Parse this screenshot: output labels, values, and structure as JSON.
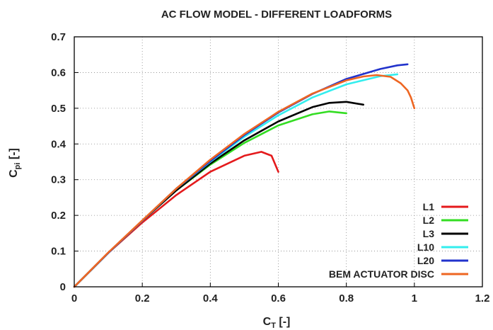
{
  "chart_data": {
    "type": "line",
    "title": "AC FLOW MODEL - DIFFERENT LOADFORMS",
    "xlabel": {
      "main": "C",
      "sub": "T",
      "suffix": " [-]"
    },
    "ylabel": {
      "main": "C",
      "sub": "pi",
      "suffix": " [-]"
    },
    "xlim": [
      0,
      1.2
    ],
    "ylim": [
      0,
      0.7
    ],
    "xticks": [
      "0",
      "0.2",
      "0.4",
      "0.6",
      "0.8",
      "1",
      "1.2"
    ],
    "yticks": [
      "0",
      "0.1",
      "0.2",
      "0.3",
      "0.4",
      "0.5",
      "0.6",
      "0.7"
    ],
    "grid": true,
    "grid_style": "dotted",
    "legend_position": "bottom-right",
    "series": [
      {
        "name": "L1",
        "color": "#e41a1c",
        "x": [
          0,
          0.1,
          0.2,
          0.3,
          0.4,
          0.5,
          0.55,
          0.58,
          0.6
        ],
        "y": [
          0,
          0.095,
          0.18,
          0.257,
          0.322,
          0.367,
          0.378,
          0.367,
          0.322
        ]
      },
      {
        "name": "L2",
        "color": "#33dd22",
        "x": [
          0,
          0.1,
          0.2,
          0.3,
          0.4,
          0.5,
          0.6,
          0.7,
          0.75,
          0.8
        ],
        "y": [
          0,
          0.095,
          0.185,
          0.27,
          0.342,
          0.403,
          0.452,
          0.483,
          0.491,
          0.486
        ]
      },
      {
        "name": "L3",
        "color": "#000000",
        "x": [
          0,
          0.1,
          0.2,
          0.3,
          0.4,
          0.5,
          0.6,
          0.7,
          0.75,
          0.8,
          0.85
        ],
        "y": [
          0,
          0.095,
          0.185,
          0.27,
          0.345,
          0.41,
          0.463,
          0.503,
          0.515,
          0.518,
          0.51
        ]
      },
      {
        "name": "L10",
        "color": "#33eeee",
        "x": [
          0,
          0.1,
          0.2,
          0.3,
          0.4,
          0.5,
          0.6,
          0.7,
          0.8,
          0.9,
          0.95
        ],
        "y": [
          0,
          0.095,
          0.185,
          0.275,
          0.35,
          0.42,
          0.48,
          0.53,
          0.567,
          0.59,
          0.595
        ]
      },
      {
        "name": "L20",
        "color": "#2233cc",
        "x": [
          0,
          0.1,
          0.2,
          0.3,
          0.4,
          0.5,
          0.6,
          0.7,
          0.8,
          0.9,
          0.95,
          0.98
        ],
        "y": [
          0,
          0.095,
          0.185,
          0.275,
          0.352,
          0.425,
          0.488,
          0.54,
          0.582,
          0.61,
          0.62,
          0.623
        ]
      },
      {
        "name": "BEM ACTUATOR DISC",
        "color": "#ee6622",
        "x": [
          0,
          0.1,
          0.2,
          0.3,
          0.4,
          0.5,
          0.6,
          0.7,
          0.8,
          0.85,
          0.889,
          0.93,
          0.96,
          0.98,
          0.99,
          1.0
        ],
        "y": [
          0,
          0.096,
          0.186,
          0.275,
          0.356,
          0.428,
          0.49,
          0.541,
          0.578,
          0.589,
          0.593,
          0.588,
          0.57,
          0.55,
          0.53,
          0.5
        ]
      }
    ]
  }
}
